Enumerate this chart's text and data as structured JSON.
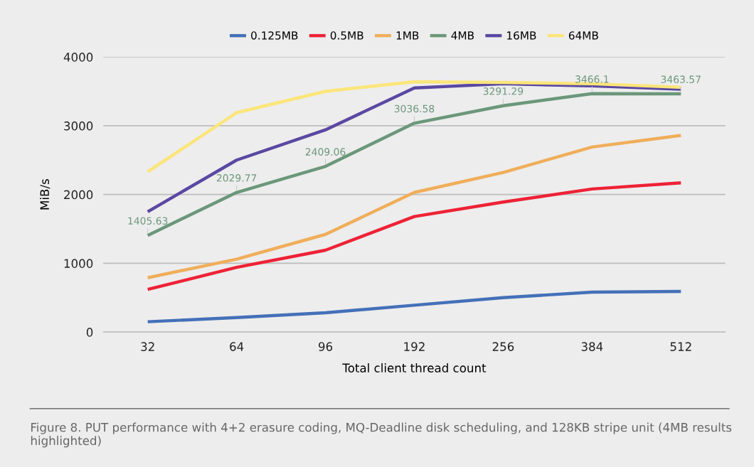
{
  "chart_data": {
    "type": "line",
    "xlabel": "Total client thread count",
    "ylabel": "MiB/s",
    "categories": [
      "32",
      "64",
      "96",
      "192",
      "256",
      "384",
      "512"
    ],
    "series": [
      {
        "name": "0.125MB",
        "color": "#4470b8",
        "values": [
          150,
          210,
          280,
          390,
          500,
          580,
          590
        ]
      },
      {
        "name": "0.5MB",
        "color": "#ee2236",
        "values": [
          620,
          940,
          1190,
          1680,
          1890,
          2080,
          2170
        ]
      },
      {
        "name": "1MB",
        "color": "#f0ae5a",
        "values": [
          790,
          1060,
          1420,
          2030,
          2320,
          2690,
          2860
        ]
      },
      {
        "name": "4MB",
        "color": "#6b977a",
        "values": [
          1405.63,
          2029.77,
          2409.06,
          3036.58,
          3291.29,
          3466.1,
          3463.57
        ],
        "value_labels": [
          "1405.63",
          "2029.77",
          "2409.06",
          "3036.58",
          "3291.29",
          "3466.1",
          "3463.57"
        ]
      },
      {
        "name": "16MB",
        "color": "#5a48a2",
        "values": [
          1750,
          2500,
          2940,
          3550,
          3610,
          3580,
          3530
        ]
      },
      {
        "name": "64MB",
        "color": "#fbe57a",
        "values": [
          2330,
          3190,
          3500,
          3640,
          3630,
          3610,
          3560
        ]
      }
    ],
    "ylim": [
      0,
      4000
    ],
    "yticks": [
      0,
      1000,
      2000,
      3000,
      4000
    ],
    "grid": "y",
    "legend": "top",
    "annotations": [
      "Figure 8. PUT performance with 4+2 erasure coding, MQ-Deadline disk scheduling, and 128KB stripe unit (4MB results highlighted)"
    ]
  }
}
